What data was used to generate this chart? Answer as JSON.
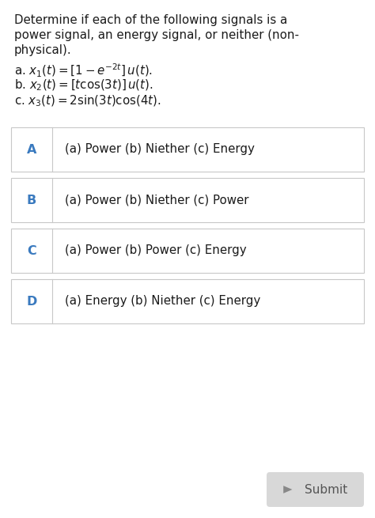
{
  "background_color": "#ffffff",
  "question_lines": [
    "Determine if each of the following signals is a",
    "power signal, an energy signal, or neither (non-",
    "physical)."
  ],
  "signal_lines": [
    "a. $x_1(t) = [1 - e^{-2t}]\\,u(t).$",
    "b. $x_2(t) = [t\\cos(3t)]\\,u(t).$",
    "c. $x_3(t) = 2\\sin(3t)\\cos(4t).$"
  ],
  "options": [
    {
      "letter": "A",
      "text": "(a) Power (b) Niether (c) Energy"
    },
    {
      "letter": "B",
      "text": "(a) Power (b) Niether (c) Power"
    },
    {
      "letter": "C",
      "text": "(a) Power (b) Power (c) Energy"
    },
    {
      "letter": "D",
      "text": "(a) Energy (b) Niether (c) Energy"
    }
  ],
  "letter_color": "#3a7abf",
  "text_color": "#1a1a1a",
  "border_color": "#c8c8c8",
  "submit_bg": "#d8d8d8",
  "submit_text_color": "#555555",
  "font_size_question": 10.8,
  "font_size_signal": 10.8,
  "font_size_option": 10.8,
  "font_size_letter": 11.5
}
